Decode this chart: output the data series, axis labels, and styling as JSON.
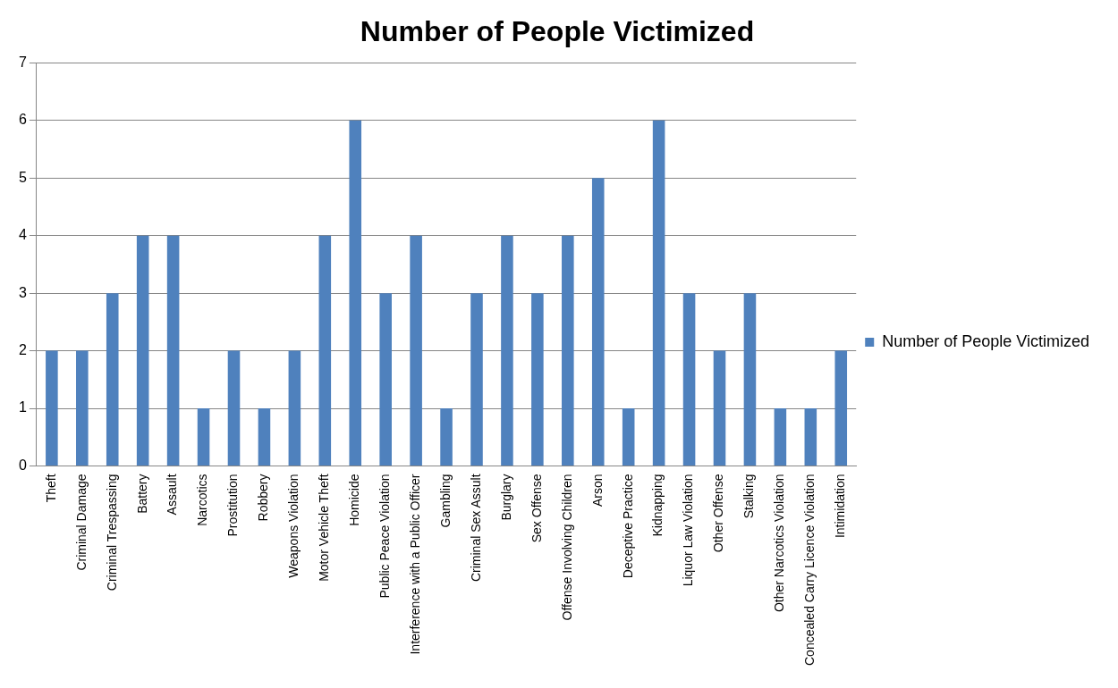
{
  "chart_data": {
    "type": "bar",
    "title": "Number of People Victimized",
    "categories": [
      "Theft",
      "Criminal Damage",
      "Criminal Trespassing",
      "Battery",
      "Assault",
      "Narcotics",
      "Prostitution",
      "Robbery",
      "Weapons Violation",
      "Motor Vehicle Theft",
      "Homicide",
      "Public Peace Violation",
      "Interference with a Public Officer",
      "Gambling",
      "Criminal Sex Assult",
      "Burglary",
      "Sex Offense",
      "Offense Involving Children",
      "Arson",
      "Deceptive Practice",
      "Kidnapping",
      "Liquor Law Violation",
      "Other Offense",
      "Stalking",
      "Other Narcotics Violation",
      "Concealed Carry Licence Violation",
      "Intimidation"
    ],
    "series": [
      {
        "name": "Number of People Victimized",
        "color": "#4f81bd",
        "values": [
          2,
          2,
          3,
          4,
          4,
          1,
          2,
          1,
          2,
          4,
          6,
          3,
          4,
          1,
          3,
          4,
          3,
          4,
          5,
          1,
          6,
          3,
          2,
          3,
          1,
          1,
          2
        ]
      }
    ],
    "ylim": [
      0,
      7
    ],
    "yticks": [
      0,
      1,
      2,
      3,
      4,
      5,
      6,
      7
    ],
    "grid": "y",
    "legend": "right"
  }
}
